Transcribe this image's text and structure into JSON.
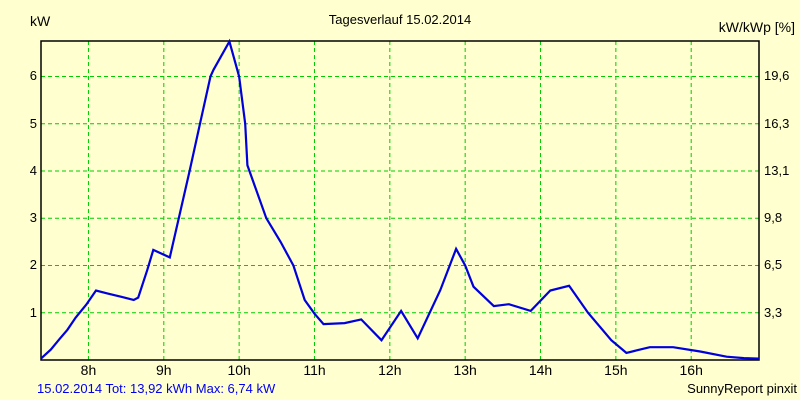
{
  "header": {
    "left_axis_unit": "kW",
    "title": "Tagesverlauf 15.02.2014",
    "right_axis_unit": "kW/kWp [%]"
  },
  "footer": {
    "summary": "15.02.2014 Tot: 13,92 kWh Max: 6,74 kW",
    "credit": "SunnyReport pinxit"
  },
  "colors": {
    "background": "#FFFFD0",
    "grid": "#00CC00",
    "line": "#0000DD",
    "frame": "#000000",
    "summary_text": "#0000EE",
    "text": "#000000"
  },
  "chart_data": {
    "type": "line",
    "title": "Tagesverlauf 15.02.2014",
    "date": "15.02.2014",
    "grid": {
      "show": true,
      "style": "dashed"
    },
    "legend": "none",
    "x_axis": {
      "unit": "hour of day",
      "min": 7.37,
      "max": 16.9,
      "ticks": [
        {
          "value": 8,
          "label": "8h"
        },
        {
          "value": 9,
          "label": "9h"
        },
        {
          "value": 10,
          "label": "10h"
        },
        {
          "value": 11,
          "label": "11h"
        },
        {
          "value": 12,
          "label": "12h"
        },
        {
          "value": 13,
          "label": "13h"
        },
        {
          "value": 14,
          "label": "14h"
        },
        {
          "value": 15,
          "label": "15h"
        },
        {
          "value": 16,
          "label": "16h"
        }
      ]
    },
    "y_axis_left": {
      "label": "kW",
      "min": 0,
      "max": 6.75,
      "ticks": [
        {
          "value": 1,
          "label": "1"
        },
        {
          "value": 2,
          "label": "2"
        },
        {
          "value": 3,
          "label": "3"
        },
        {
          "value": 4,
          "label": "4"
        },
        {
          "value": 5,
          "label": "5"
        },
        {
          "value": 6,
          "label": "6"
        }
      ]
    },
    "y_axis_right": {
      "label": "kW/kWp [%]",
      "ticks": [
        {
          "value": 1,
          "label": "3,3"
        },
        {
          "value": 2,
          "label": "6,5"
        },
        {
          "value": 3,
          "label": "9,8"
        },
        {
          "value": 4,
          "label": "13,1"
        },
        {
          "value": 5,
          "label": "16,3"
        },
        {
          "value": 6,
          "label": "19,6"
        }
      ]
    },
    "stats": {
      "total": "13,92 kWh",
      "max": "6,74 kW"
    },
    "series": [
      {
        "name": "kW",
        "color": "#0000DD",
        "points": [
          [
            7.37,
            0.03
          ],
          [
            7.5,
            0.22
          ],
          [
            7.62,
            0.45
          ],
          [
            7.72,
            0.64
          ],
          [
            7.83,
            0.9
          ],
          [
            7.97,
            1.17
          ],
          [
            8.1,
            1.47
          ],
          [
            8.25,
            1.41
          ],
          [
            8.45,
            1.33
          ],
          [
            8.6,
            1.27
          ],
          [
            8.66,
            1.32
          ],
          [
            8.78,
            1.9
          ],
          [
            8.86,
            2.33
          ],
          [
            9.08,
            2.17
          ],
          [
            9.34,
            3.98
          ],
          [
            9.48,
            5.0
          ],
          [
            9.62,
            6.0
          ],
          [
            9.66,
            6.14
          ],
          [
            9.87,
            6.74
          ],
          [
            10.0,
            6.0
          ],
          [
            10.08,
            5.0
          ],
          [
            10.11,
            4.12
          ],
          [
            10.36,
            3.0
          ],
          [
            10.55,
            2.5
          ],
          [
            10.72,
            2.0
          ],
          [
            10.87,
            1.27
          ],
          [
            11.0,
            0.98
          ],
          [
            11.12,
            0.76
          ],
          [
            11.4,
            0.78
          ],
          [
            11.62,
            0.86
          ],
          [
            11.89,
            0.42
          ],
          [
            12.15,
            1.04
          ],
          [
            12.37,
            0.46
          ],
          [
            12.67,
            1.48
          ],
          [
            12.88,
            2.35
          ],
          [
            13.0,
            2.0
          ],
          [
            13.11,
            1.55
          ],
          [
            13.38,
            1.14
          ],
          [
            13.58,
            1.18
          ],
          [
            13.87,
            1.04
          ],
          [
            14.13,
            1.47
          ],
          [
            14.38,
            1.57
          ],
          [
            14.63,
            1.0
          ],
          [
            14.94,
            0.42
          ],
          [
            15.14,
            0.15
          ],
          [
            15.45,
            0.27
          ],
          [
            15.76,
            0.27
          ],
          [
            16.12,
            0.18
          ],
          [
            16.47,
            0.07
          ],
          [
            16.7,
            0.04
          ],
          [
            16.9,
            0.03
          ]
        ]
      }
    ]
  }
}
